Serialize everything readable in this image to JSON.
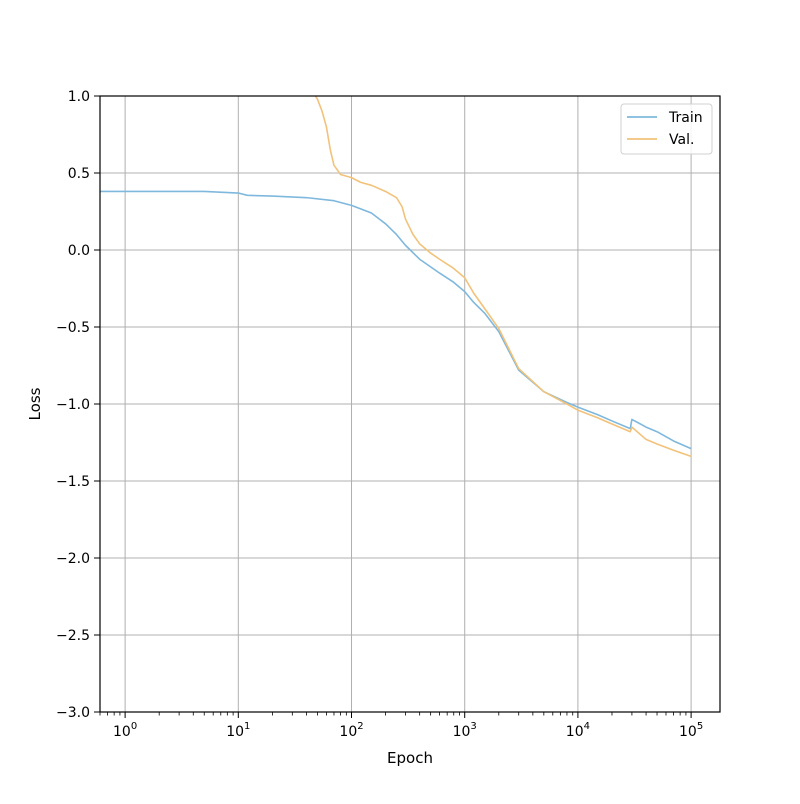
{
  "chart_data": {
    "type": "line",
    "title": "",
    "xlabel": "Epoch",
    "ylabel": "Loss",
    "xscale": "log",
    "xlim": [
      0.6,
      180000
    ],
    "ylim": [
      -3.0,
      1.0
    ],
    "grid": true,
    "legend_position": "top-right",
    "x_ticks": [
      {
        "value": 1,
        "base": "10",
        "exp": "0"
      },
      {
        "value": 10,
        "base": "10",
        "exp": "1"
      },
      {
        "value": 100,
        "base": "10",
        "exp": "2"
      },
      {
        "value": 1000,
        "base": "10",
        "exp": "3"
      },
      {
        "value": 10000,
        "base": "10",
        "exp": "4"
      },
      {
        "value": 100000,
        "base": "10",
        "exp": "5"
      }
    ],
    "y_ticks": [
      {
        "value": 1.0,
        "label": "1.0"
      },
      {
        "value": 0.5,
        "label": "0.5"
      },
      {
        "value": 0.0,
        "label": "0.0"
      },
      {
        "value": -0.5,
        "label": "−0.5"
      },
      {
        "value": -1.0,
        "label": "−1.0"
      },
      {
        "value": -1.5,
        "label": "−1.5"
      },
      {
        "value": -2.0,
        "label": "−2.0"
      },
      {
        "value": -2.5,
        "label": "−2.5"
      },
      {
        "value": -3.0,
        "label": "−3.0"
      }
    ],
    "series": [
      {
        "name": "Train",
        "color": "#7fb8dd",
        "x": [
          0.6,
          1,
          2,
          5,
          10,
          12,
          20,
          40,
          70,
          100,
          150,
          200,
          250,
          300,
          400,
          600,
          800,
          1000,
          1200,
          1500,
          2000,
          3000,
          5000,
          8000,
          10000,
          15000,
          20000,
          29000,
          30000,
          40000,
          50000,
          70000,
          100000
        ],
        "y": [
          0.38,
          0.38,
          0.38,
          0.38,
          0.37,
          0.355,
          0.35,
          0.34,
          0.32,
          0.29,
          0.24,
          0.17,
          0.1,
          0.03,
          -0.06,
          -0.15,
          -0.21,
          -0.27,
          -0.34,
          -0.41,
          -0.53,
          -0.78,
          -0.92,
          -0.99,
          -1.02,
          -1.07,
          -1.11,
          -1.16,
          -1.1,
          -1.15,
          -1.18,
          -1.24,
          -1.29
        ]
      },
      {
        "name": "Val.",
        "color": "#f2c27a",
        "x": [
          48,
          50,
          55,
          60,
          65,
          70,
          75,
          80,
          100,
          120,
          150,
          200,
          250,
          280,
          300,
          350,
          400,
          500,
          600,
          800,
          1000,
          1200,
          1500,
          2000,
          3000,
          5000,
          8000,
          10000,
          15000,
          20000,
          29000,
          30000,
          40000,
          50000,
          70000,
          100000
        ],
        "y": [
          1.0,
          0.98,
          0.9,
          0.8,
          0.65,
          0.55,
          0.52,
          0.49,
          0.47,
          0.44,
          0.42,
          0.38,
          0.34,
          0.28,
          0.2,
          0.1,
          0.04,
          -0.02,
          -0.06,
          -0.12,
          -0.18,
          -0.28,
          -0.38,
          -0.51,
          -0.77,
          -0.92,
          -1.0,
          -1.04,
          -1.09,
          -1.13,
          -1.18,
          -1.15,
          -1.23,
          -1.26,
          -1.3,
          -1.34
        ]
      }
    ]
  }
}
